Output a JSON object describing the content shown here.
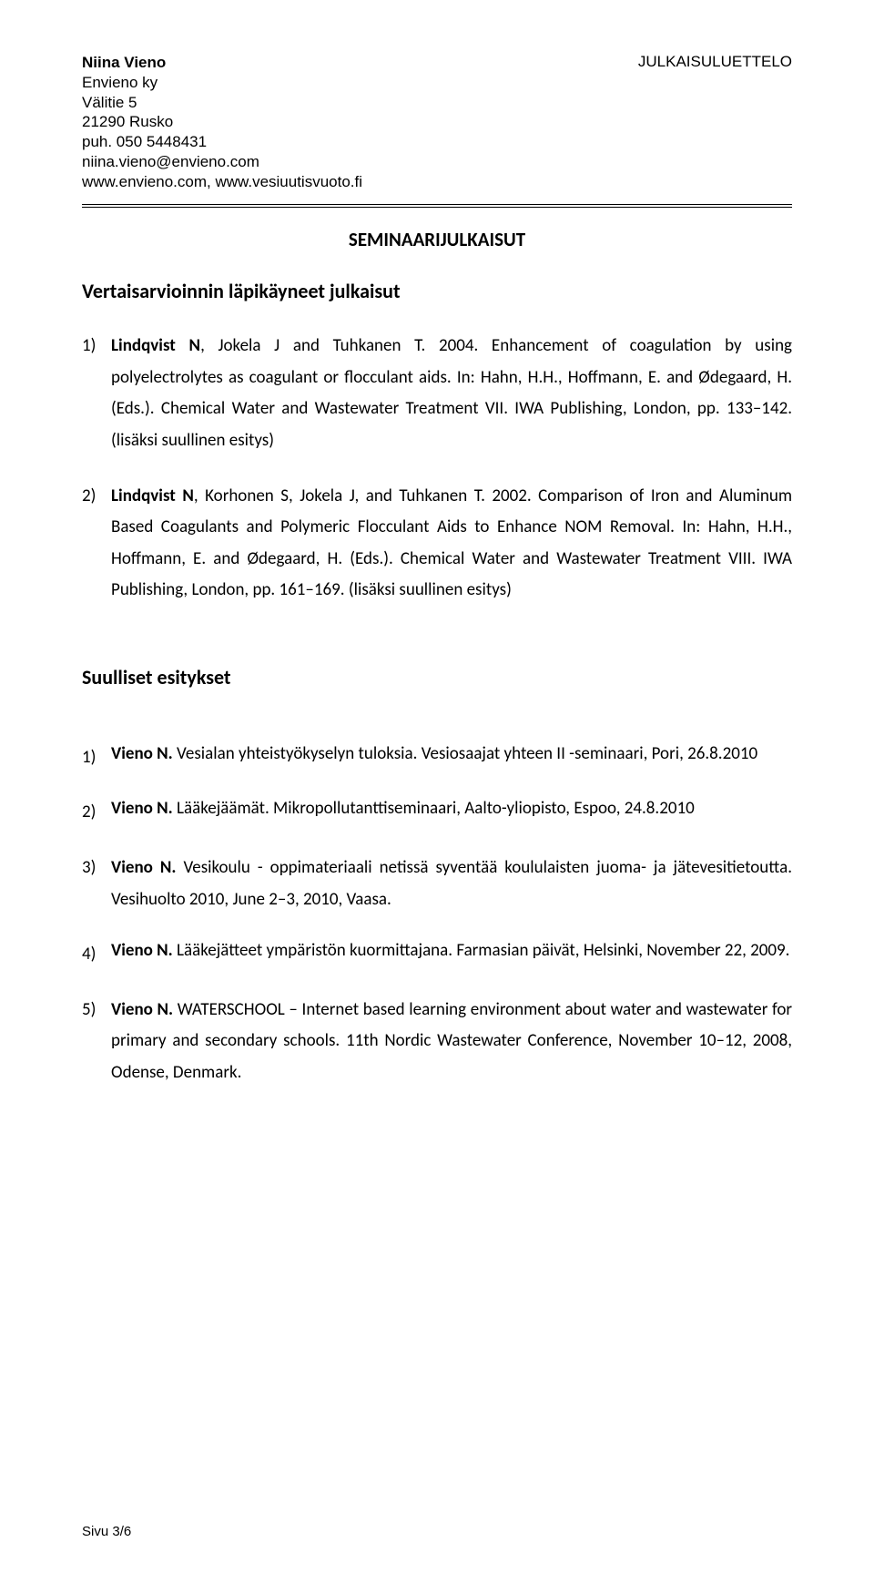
{
  "header": {
    "name": "Niina Vieno",
    "company": "Envieno ky",
    "street": "Välitie 5",
    "postal": "21290 Rusko",
    "phone": "puh. 050 5448431",
    "email": "niina.vieno@envieno.com",
    "web": "www.envieno.com, www.vesiuutisvuoto.fi",
    "doc_type": "JULKAISULUETTELO"
  },
  "section_title": "SEMINAARIJULKAISUT",
  "subheading1": "Vertaisarvioinnin läpikäyneet julkaisut",
  "peer_reviewed": [
    {
      "num": "1)",
      "lead": "Lindqvist N",
      "authors_rest": ", Jokela J and Tuhkanen T. 2004. Enhancement of coagulation by using polyelectrolytes as coagulant or flocculant aids. In: Hahn, H.H., Hoffmann, E. and Ødegaard, H. (Eds.). Chemical Water and Wastewater Treatment VII. IWA Publishing, London, pp. 133–142. (lisäksi suullinen esitys)"
    },
    {
      "num": "2)",
      "lead": "Lindqvist N",
      "authors_rest": ", Korhonen S, Jokela J, and Tuhkanen T. 2002. Comparison of Iron and Aluminum Based Coagulants and Polymeric Flocculant Aids to Enhance NOM Removal. In: Hahn, H.H., Hoffmann, E. and Ødegaard, H. (Eds.). Chemical Water and Wastewater Treatment VIII. IWA Publishing, London, pp. 161–169. (lisäksi suullinen esitys)"
    }
  ],
  "subheading2": "Suulliset esitykset",
  "oral": [
    {
      "num": "1)",
      "lead": "Vieno N.",
      "rest": " Vesialan yhteistyökyselyn tuloksia. Vesiosaajat yhteen II -seminaari, Pori, 26.8.2010",
      "tight": true
    },
    {
      "num": "2)",
      "lead": "Vieno N.",
      "rest": " Lääkejäämät. Mikropollutanttiseminaari, Aalto-yliopisto, Espoo, 24.8.2010",
      "tight": true
    },
    {
      "num": "3)",
      "lead": "Vieno N.",
      "rest": " Vesikoulu - oppimateriaali netissä syventää koululaisten juoma- ja jätevesitietoutta. Vesihuolto 2010, June 2–3, 2010, Vaasa.",
      "tight": false
    },
    {
      "num": "4)",
      "lead": "Vieno N.",
      "rest": " Lääkejätteet ympäristön kuormittajana. Farmasian päivät, Helsinki, November 22, 2009.",
      "tight": true
    },
    {
      "num": "5)",
      "lead": "Vieno N.",
      "rest": " WATERSCHOOL – Internet based learning environment about water and wastewater for primary and secondary schools. 11th Nordic Wastewater Conference, November 10–12, 2008, Odense, Denmark.",
      "tight": false
    }
  ],
  "footer": "Sivu 3/6"
}
